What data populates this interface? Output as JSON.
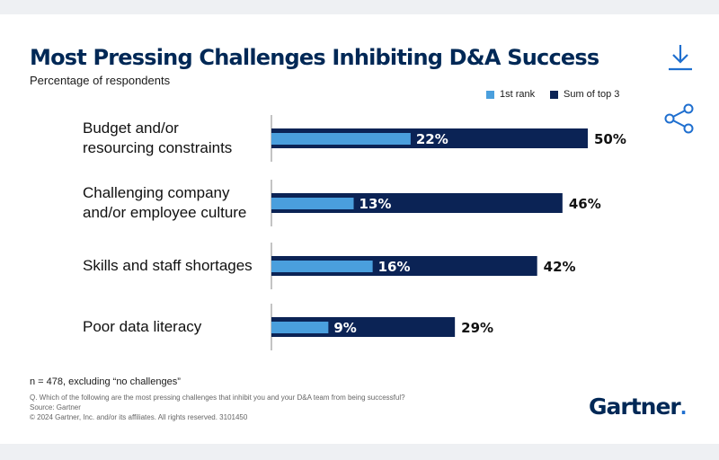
{
  "header": {
    "title": "Most Pressing Challenges Inhibiting D&A Success",
    "subtitle": "Percentage of respondents"
  },
  "toolbar": {
    "download_icon": "download-icon",
    "share_icon": "share-icon"
  },
  "colors": {
    "first_rank": "#4a9fdd",
    "sum_top3": "#0b2355",
    "title": "#002856",
    "accent": "#1f6fcf"
  },
  "chart_data": {
    "type": "bar",
    "orientation": "horizontal",
    "categories": [
      [
        "Budget and/or",
        "resourcing constraints"
      ],
      [
        "Challenging company",
        "and/or employee culture"
      ],
      [
        "Skills and staff shortages"
      ],
      [
        "Poor data literacy"
      ]
    ],
    "series": [
      {
        "name": "1st rank",
        "values": [
          22,
          13,
          16,
          9
        ],
        "labels": [
          "22%",
          "13%",
          "16%",
          "9%"
        ]
      },
      {
        "name": "Sum of top 3",
        "values": [
          50,
          46,
          42,
          29
        ],
        "labels": [
          "50%",
          "46%",
          "42%",
          "29%"
        ]
      }
    ],
    "xlim": [
      0,
      100
    ],
    "legend": "top-right",
    "grid": false
  },
  "footer": {
    "note": "n = 478, excluding “no challenges”",
    "question": "Q. Which of the following are the most pressing challenges that inhibit you and your D&A team from being successful?",
    "source": "Source: Gartner",
    "copyright": "© 2024 Gartner, Inc. and/or its affiliates. All rights reserved. 3101450",
    "logo": "Gartner"
  }
}
